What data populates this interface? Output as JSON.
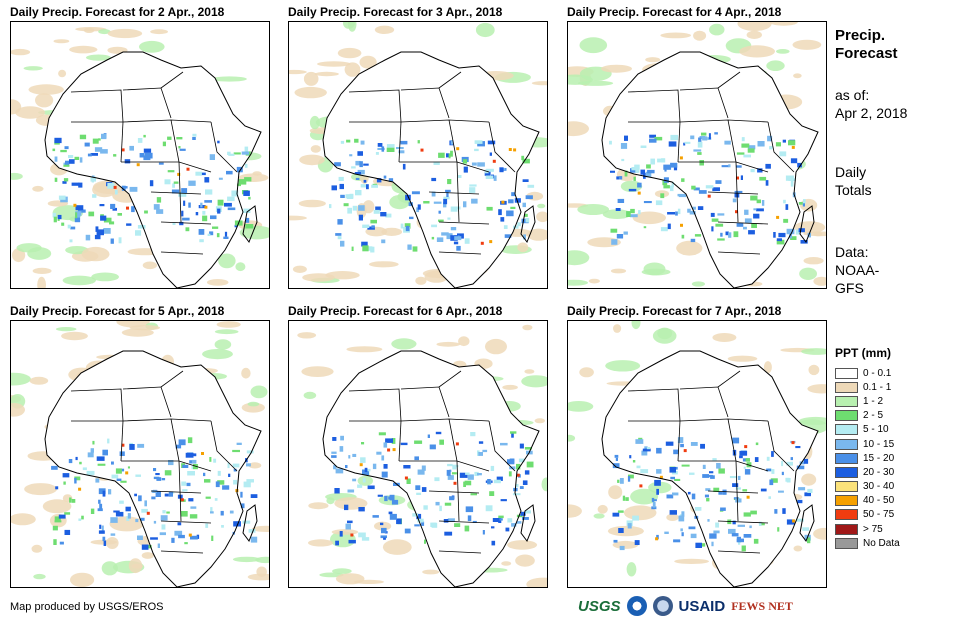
{
  "panels": [
    {
      "title": "Daily Precip. Forecast for 2 Apr., 2018"
    },
    {
      "title": "Daily Precip. Forecast for 3 Apr., 2018"
    },
    {
      "title": "Daily Precip. Forecast for 4 Apr., 2018"
    },
    {
      "title": "Daily Precip. Forecast for 5 Apr., 2018"
    },
    {
      "title": "Daily Precip. Forecast for 6 Apr., 2018"
    },
    {
      "title": "Daily Precip. Forecast for 7 Apr., 2018"
    }
  ],
  "sidebar": {
    "title_line1": "Precip.",
    "title_line2": "Forecast",
    "asof_label": "as of:",
    "asof_date": "Apr 2, 2018",
    "totals_line1": "Daily",
    "totals_line2": "Totals",
    "data_line1": "Data:",
    "data_line2": "NOAA-",
    "data_line3": "GFS"
  },
  "legend": {
    "title": "PPT (mm)",
    "items": [
      {
        "label": "0 - 0.1",
        "color": "#ffffff"
      },
      {
        "label": "0.1 - 1",
        "color": "#eed9b8"
      },
      {
        "label": "1 - 2",
        "color": "#b8f0b0"
      },
      {
        "label": "2 - 5",
        "color": "#6edd70"
      },
      {
        "label": "5 - 10",
        "color": "#b4ecf2"
      },
      {
        "label": "10 - 15",
        "color": "#7ab8ee"
      },
      {
        "label": "15 - 20",
        "color": "#4a90e8"
      },
      {
        "label": "20 - 30",
        "color": "#1c5ee0"
      },
      {
        "label": "30 - 40",
        "color": "#fbe27a"
      },
      {
        "label": "40 - 50",
        "color": "#f5a000"
      },
      {
        "label": "50 - 75",
        "color": "#f03c10"
      },
      {
        "label": "> 75",
        "color": "#a01818"
      },
      {
        "label": "No Data",
        "color": "#999999"
      }
    ]
  },
  "footer": {
    "credit": "Map produced by USGS/EROS",
    "logo_usgs": "USGS",
    "logo_usaid": "USAID",
    "logo_fews": "FEWS NET"
  }
}
